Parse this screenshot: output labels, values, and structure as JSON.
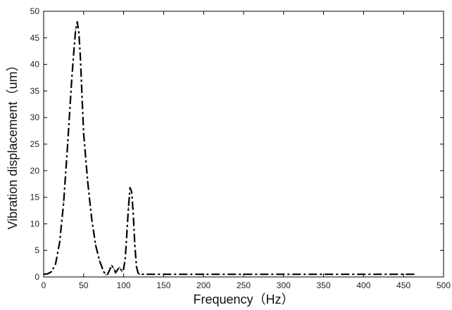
{
  "chart_data": {
    "type": "line",
    "title": "",
    "xlabel": "Frequency（Hz）",
    "ylabel": "Vibration displacement（um）",
    "xlim": [
      0,
      500
    ],
    "ylim": [
      0,
      50
    ],
    "xticks": [
      "0",
      "50",
      "100",
      "150",
      "200",
      "250",
      "300",
      "350",
      "400",
      "450",
      "500"
    ],
    "yticks": [
      "0",
      "5",
      "10",
      "15",
      "20",
      "25",
      "30",
      "35",
      "40",
      "45",
      "50"
    ],
    "grid": false,
    "line_style": "dash-dot",
    "series": [
      {
        "color": "#000000",
        "x": [
          0,
          5,
          10,
          15,
          20,
          25,
          30,
          35,
          38,
          40,
          42,
          44,
          46,
          48,
          50,
          55,
          60,
          65,
          70,
          75,
          78,
          80,
          83,
          85,
          88,
          90,
          93,
          95,
          98,
          100,
          102,
          104,
          106,
          107,
          108,
          110,
          112,
          114,
          116,
          118,
          120,
          125,
          150,
          200,
          250,
          300,
          350,
          400,
          450,
          463
        ],
        "y": [
          0.5,
          0.6,
          1.0,
          2.5,
          6.5,
          14.0,
          25.0,
          37.0,
          43.0,
          46.5,
          48.0,
          46.0,
          41.0,
          34.0,
          27.0,
          18.0,
          11.0,
          6.0,
          3.0,
          1.0,
          0.4,
          0.5,
          1.5,
          2.2,
          1.5,
          0.8,
          1.5,
          1.8,
          1.0,
          1.5,
          3.5,
          8.0,
          13.0,
          15.0,
          16.8,
          16.0,
          12.0,
          6.0,
          2.0,
          0.8,
          0.5,
          0.5,
          0.5,
          0.5,
          0.5,
          0.5,
          0.5,
          0.5,
          0.5,
          0.5
        ]
      }
    ]
  }
}
